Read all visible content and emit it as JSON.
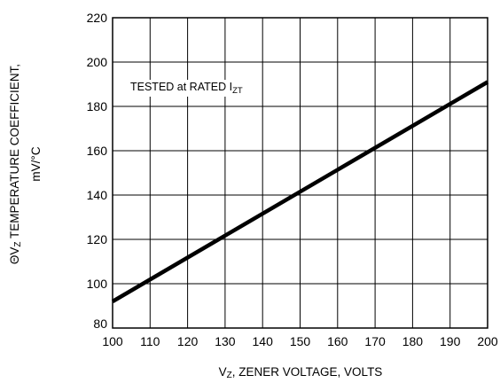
{
  "chart_data": {
    "type": "line",
    "title": "",
    "xlabel": {
      "sub_prefix": "V",
      "sub": "Z",
      "text": ", ZENER VOLTAGE, VOLTS"
    },
    "ylabel": {
      "line1_prefix": "ΘV",
      "line1_sub": "Z",
      "line1_text": " TEMPERATURE COEFFICIENT,",
      "line2": "mV/°C"
    },
    "xlim": [
      100,
      200
    ],
    "ylim": [
      80,
      220
    ],
    "xticks": [
      100,
      110,
      120,
      130,
      140,
      150,
      160,
      170,
      180,
      190,
      200
    ],
    "yticks": [
      80,
      100,
      120,
      140,
      160,
      180,
      200,
      220
    ],
    "grid": true,
    "series": [
      {
        "x": [
          100,
          200
        ],
        "y": [
          92,
          191
        ],
        "color": "#000000"
      }
    ],
    "annotation": {
      "text": "TESTED at RATED I",
      "sub": "ZT"
    }
  }
}
